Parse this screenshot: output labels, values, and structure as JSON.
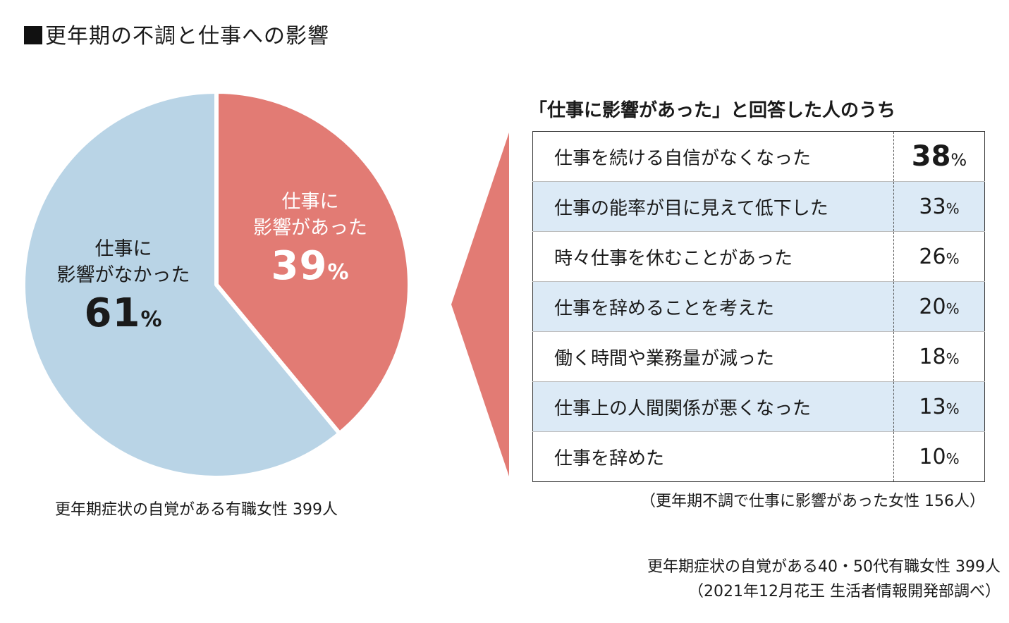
{
  "title": "更年期の不調と仕事への影響",
  "chart_data": [
    {
      "type": "pie",
      "slices": [
        {
          "label": "仕事に影響があった",
          "value": 39,
          "color": "#e27b74"
        },
        {
          "label": "仕事に影響がなかった",
          "value": 61,
          "color": "#b9d4e6"
        }
      ],
      "labels": {
        "yes_line1": "仕事に",
        "yes_line2": "影響があった",
        "yes_value": "39",
        "no_line1": "仕事に",
        "no_line2": "影響がなかった",
        "no_value": "61",
        "unit": "%"
      },
      "note": "更年期症状の自覚がある有職女性 399人"
    },
    {
      "type": "table",
      "title": "「仕事に影響があった」と回答した人のうち",
      "unit": "%",
      "rows": [
        {
          "item": "仕事を続ける自信がなくなった",
          "value": 38
        },
        {
          "item": "仕事の能率が目に見えて低下した",
          "value": 33
        },
        {
          "item": "時々仕事を休むことがあった",
          "value": 26
        },
        {
          "item": "仕事を辞めることを考えた",
          "value": 20
        },
        {
          "item": "働く時間や業務量が減った",
          "value": 18
        },
        {
          "item": "仕事上の人間関係が悪くなった",
          "value": 13
        },
        {
          "item": "仕事を辞めた",
          "value": 10
        }
      ],
      "note": "（更年期不調で仕事に影響があった女性 156人）"
    }
  ],
  "source": {
    "line1": "更年期症状の自覚がある40・50代有職女性 399人",
    "line2": "（2021年12月花王 生活者情報開発部調べ）"
  },
  "colors": {
    "accent": "#e27b74",
    "pie_secondary": "#b9d4e6",
    "row_alt": "#dceaf6"
  }
}
